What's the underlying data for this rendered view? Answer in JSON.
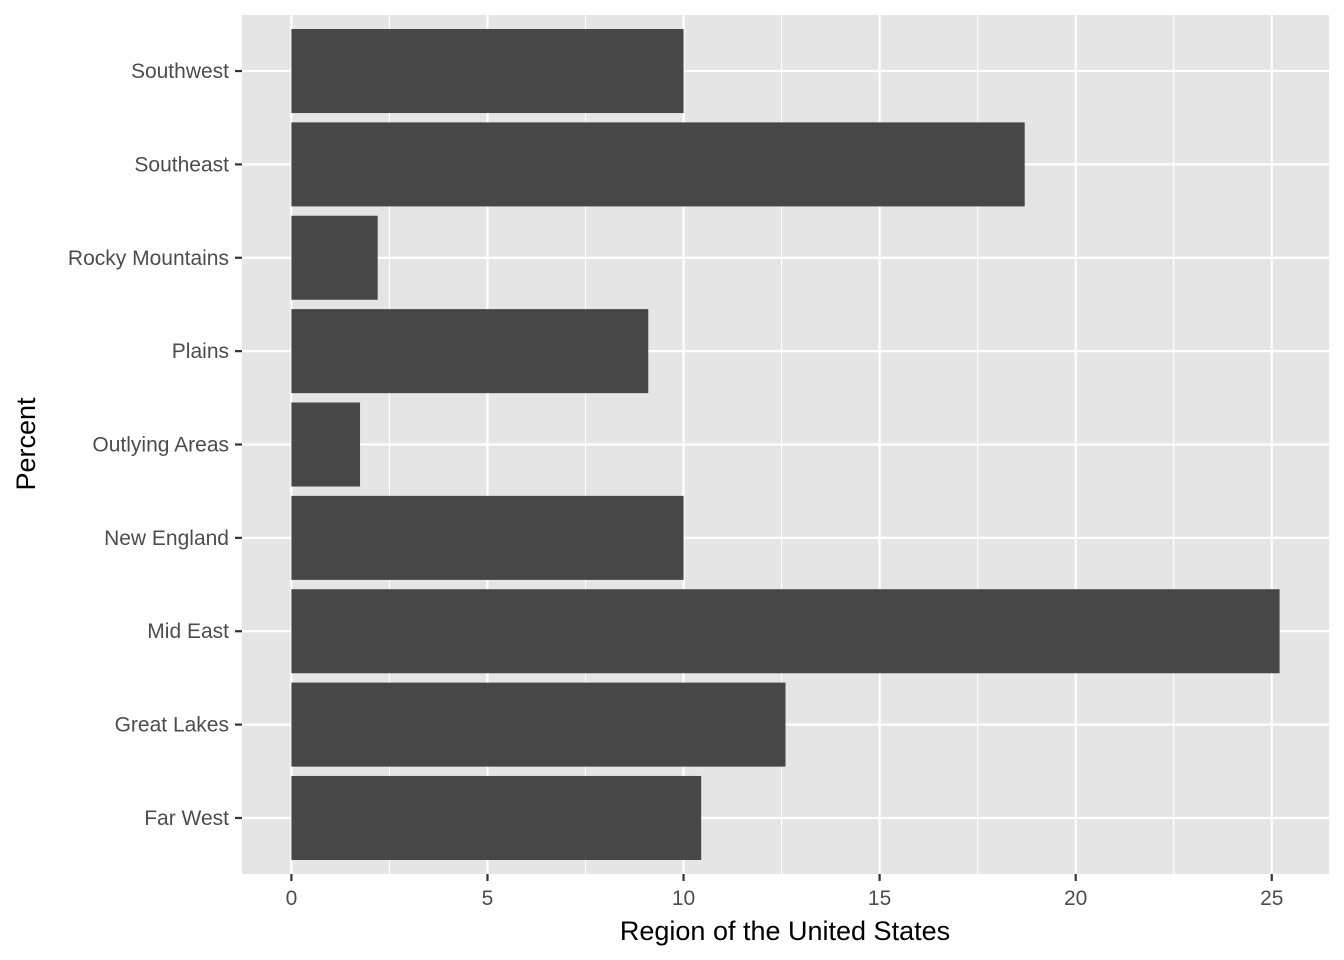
{
  "chart_data": {
    "type": "bar",
    "orientation": "horizontal",
    "categories": [
      "Far West",
      "Great Lakes",
      "Mid East",
      "New England",
      "Outlying Areas",
      "Plains",
      "Rocky Mountains",
      "Southeast",
      "Southwest"
    ],
    "values": [
      10.45,
      12.6,
      25.2,
      10.0,
      1.75,
      9.1,
      2.2,
      18.7,
      10.0
    ],
    "x_ticks": [
      "0",
      "5",
      "10",
      "15",
      "20",
      "25"
    ],
    "xlim": [
      -1.26,
      26.46
    ],
    "xlabel": "Region of the United States",
    "ylabel": "Percent",
    "grid": true,
    "legend": "none",
    "colors": {
      "panel": "#e5e5e5",
      "bar": "#474747",
      "grid": "#ffffff",
      "tick_text": "#4d4d4d",
      "title_text": "#000000"
    }
  }
}
